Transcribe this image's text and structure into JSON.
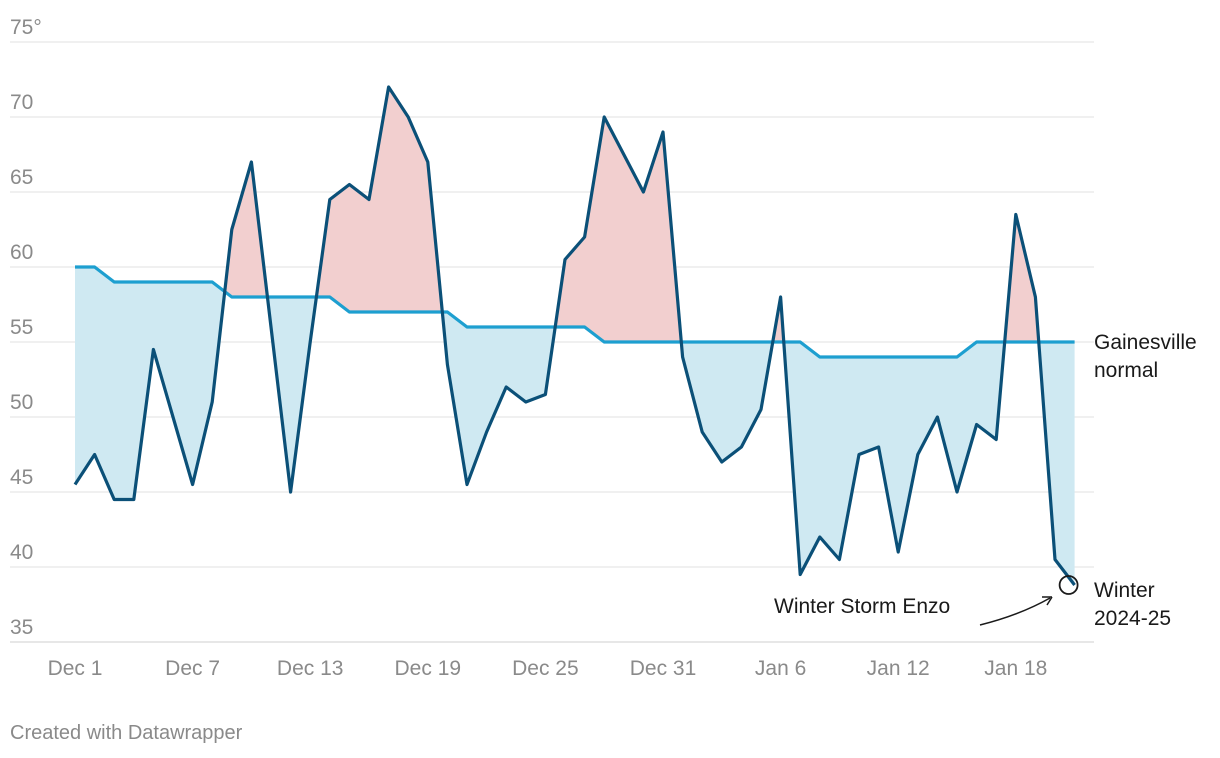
{
  "chart_data": {
    "type": "line",
    "x": [
      "Dec 1",
      "Dec 2",
      "Dec 3",
      "Dec 4",
      "Dec 5",
      "Dec 6",
      "Dec 7",
      "Dec 8",
      "Dec 9",
      "Dec 10",
      "Dec 11",
      "Dec 12",
      "Dec 13",
      "Dec 14",
      "Dec 15",
      "Dec 16",
      "Dec 17",
      "Dec 18",
      "Dec 19",
      "Dec 20",
      "Dec 21",
      "Dec 22",
      "Dec 23",
      "Dec 24",
      "Dec 25",
      "Dec 26",
      "Dec 27",
      "Dec 28",
      "Dec 29",
      "Dec 30",
      "Dec 31",
      "Jan 1",
      "Jan 2",
      "Jan 3",
      "Jan 4",
      "Jan 5",
      "Jan 6",
      "Jan 7",
      "Jan 8",
      "Jan 9",
      "Jan 10",
      "Jan 11",
      "Jan 12",
      "Jan 13",
      "Jan 14",
      "Jan 15",
      "Jan 16",
      "Jan 17",
      "Jan 18",
      "Jan 19",
      "Jan 20",
      "Jan 21"
    ],
    "x_tick_labels": [
      "Dec 1",
      "Dec 7",
      "Dec 13",
      "Dec 19",
      "Dec 25",
      "Dec 31",
      "Jan 6",
      "Jan 12",
      "Jan 18"
    ],
    "y_tick_labels": [
      "75°",
      "70",
      "65",
      "60",
      "55",
      "50",
      "45",
      "40",
      "35"
    ],
    "y_ticks": [
      75,
      70,
      65,
      60,
      55,
      50,
      45,
      40,
      35
    ],
    "ylim": [
      35,
      75
    ],
    "grid": true,
    "series": [
      {
        "name": "Winter 2024-25",
        "color": "#0b5078",
        "values": [
          45.5,
          47.5,
          44.5,
          44.5,
          54.5,
          50,
          45.5,
          51,
          62.5,
          67,
          56,
          45,
          55,
          64.5,
          65.5,
          64.5,
          72,
          70,
          67,
          53.5,
          45.5,
          49,
          52,
          51,
          51.5,
          60.5,
          62,
          70,
          67.5,
          65,
          69,
          54,
          49,
          47,
          48,
          50.5,
          58,
          39.5,
          42,
          40.5,
          47.5,
          48,
          41,
          47.5,
          50,
          45,
          49.5,
          48.5,
          63.5,
          58,
          40.5,
          38.8
        ]
      },
      {
        "name": "Gainesville normal",
        "color": "#1d9fd0",
        "values": [
          60,
          60,
          59,
          59,
          59,
          59,
          59,
          59,
          58,
          58,
          58,
          58,
          58,
          58,
          57,
          57,
          57,
          57,
          57,
          57,
          56,
          56,
          56,
          56,
          56,
          56,
          56,
          55,
          55,
          55,
          55,
          55,
          55,
          55,
          55,
          55,
          55,
          55,
          54,
          54,
          54,
          54,
          54,
          54,
          54,
          54,
          55,
          55,
          55,
          55,
          55,
          55
        ]
      }
    ],
    "fill_colors": {
      "above_normal": "#f2cfcf",
      "below_normal": "#cfe9f2"
    },
    "series_labels": [
      "Gainesville",
      "normal",
      "Winter",
      "2024-25"
    ],
    "annotation": {
      "text": "Winter Storm Enzo"
    }
  },
  "footer": {
    "credit": "Created with Datawrapper"
  }
}
